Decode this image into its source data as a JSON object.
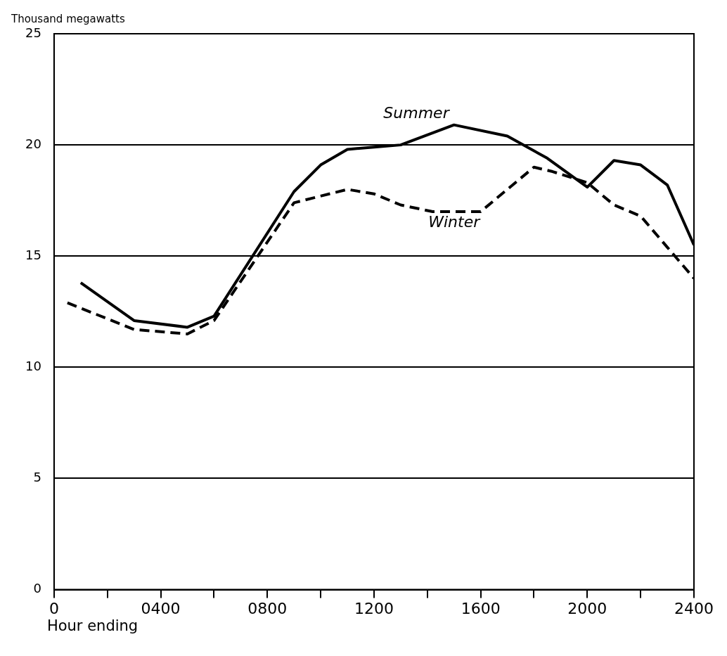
{
  "chart_data": {
    "type": "line",
    "ylabel": "Thousand megawatts",
    "xlabel": "Hour ending",
    "xlim": [
      0,
      2400
    ],
    "xticks": [
      0,
      {
        "value": 200,
        "label": null
      },
      {
        "value": 400,
        "label": "0400"
      },
      {
        "value": 600,
        "label": null
      },
      {
        "value": 800,
        "label": "0800"
      },
      {
        "value": 1000,
        "label": null
      },
      1200,
      {
        "value": 1400,
        "label": null
      },
      1600,
      {
        "value": 1800,
        "label": null
      },
      2000,
      {
        "value": 2200,
        "label": null
      },
      2400
    ],
    "ylim": [
      0,
      25
    ],
    "yticks": [
      0,
      5,
      10,
      15,
      20,
      25
    ],
    "grid": "y",
    "legend": false,
    "marker": "none",
    "series": [
      {
        "name": "Summer",
        "color": "#000000",
        "line_style": "solid",
        "x": [
          100,
          300,
          500,
          600,
          900,
          1000,
          1100,
          1200,
          1300,
          1500,
          1700,
          1850,
          2000,
          2100,
          2200,
          2300,
          2400
        ],
        "values": [
          13.8,
          12.1,
          11.8,
          12.3,
          17.9,
          19.1,
          19.8,
          19.9,
          20.0,
          20.9,
          20.4,
          19.4,
          18.1,
          19.3,
          19.1,
          18.2,
          15.5
        ]
      },
      {
        "name": "Winter",
        "color": "#000000",
        "line_style": "dashed",
        "x": [
          50,
          300,
          500,
          600,
          900,
          1100,
          1200,
          1300,
          1420,
          1600,
          1800,
          1870,
          2000,
          2100,
          2200,
          2300,
          2400
        ],
        "values": [
          12.9,
          11.7,
          11.5,
          12.1,
          17.4,
          18.0,
          17.8,
          17.3,
          17.0,
          17.0,
          19.0,
          18.8,
          18.3,
          17.3,
          16.8,
          15.4,
          14.0
        ]
      }
    ]
  }
}
